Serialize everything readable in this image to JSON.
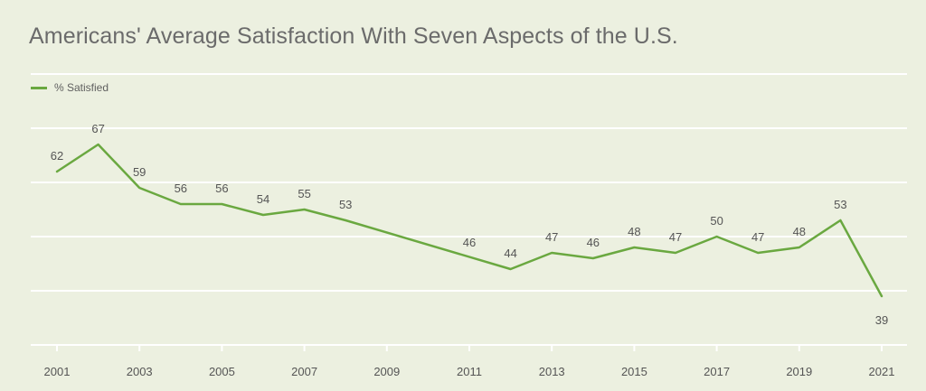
{
  "chart_data": {
    "type": "line",
    "title": "Americans' Average Satisfaction With Seven Aspects of the U.S.",
    "xlabel": "",
    "ylabel": "",
    "x": [
      2001,
      2002,
      2003,
      2004,
      2005,
      2006,
      2007,
      2008,
      2012,
      2013,
      2014,
      2015,
      2016,
      2017,
      2018,
      2019,
      2020,
      2021
    ],
    "series": [
      {
        "name": "% Satisfied",
        "values": [
          62,
          67,
          59,
          56,
          56,
          54,
          55,
          53,
          44,
          47,
          46,
          48,
          47,
          50,
          47,
          48,
          53,
          39
        ],
        "color": "#6aa840"
      }
    ],
    "labels": [
      {
        "x": 2001,
        "y": 62,
        "text": "62"
      },
      {
        "x": 2002,
        "y": 67,
        "text": "67"
      },
      {
        "x": 2003,
        "y": 59,
        "text": "59"
      },
      {
        "x": 2004,
        "y": 56,
        "text": "56"
      },
      {
        "x": 2005,
        "y": 56,
        "text": "56"
      },
      {
        "x": 2006,
        "y": 54,
        "text": "54"
      },
      {
        "x": 2007,
        "y": 55,
        "text": "55"
      },
      {
        "x": 2008,
        "y": 53,
        "text": "53"
      },
      {
        "x": 2011,
        "y": 46,
        "text": "46"
      },
      {
        "x": 2012,
        "y": 44,
        "text": "44"
      },
      {
        "x": 2013,
        "y": 47,
        "text": "47"
      },
      {
        "x": 2014,
        "y": 46,
        "text": "46"
      },
      {
        "x": 2015,
        "y": 48,
        "text": "48"
      },
      {
        "x": 2016,
        "y": 47,
        "text": "47"
      },
      {
        "x": 2017,
        "y": 50,
        "text": "50"
      },
      {
        "x": 2018,
        "y": 47,
        "text": "47"
      },
      {
        "x": 2019,
        "y": 48,
        "text": "48"
      },
      {
        "x": 2020,
        "y": 53,
        "text": "53"
      },
      {
        "x": 2021,
        "y": 39,
        "text": "39"
      }
    ],
    "xticks": [
      "2001",
      "2003",
      "2005",
      "2007",
      "2009",
      "2011",
      "2013",
      "2015",
      "2017",
      "2019",
      "2021"
    ],
    "xlim": [
      2001,
      2021
    ],
    "ylim": [
      30,
      80
    ],
    "y_gridlines": [
      30,
      40,
      50,
      60,
      70,
      80
    ],
    "grid": true,
    "legend_position": "top-left",
    "colors": {
      "background": "#ecf0e0",
      "gridline": "#ffffff",
      "line": "#6aa840",
      "text": "#555555"
    }
  }
}
